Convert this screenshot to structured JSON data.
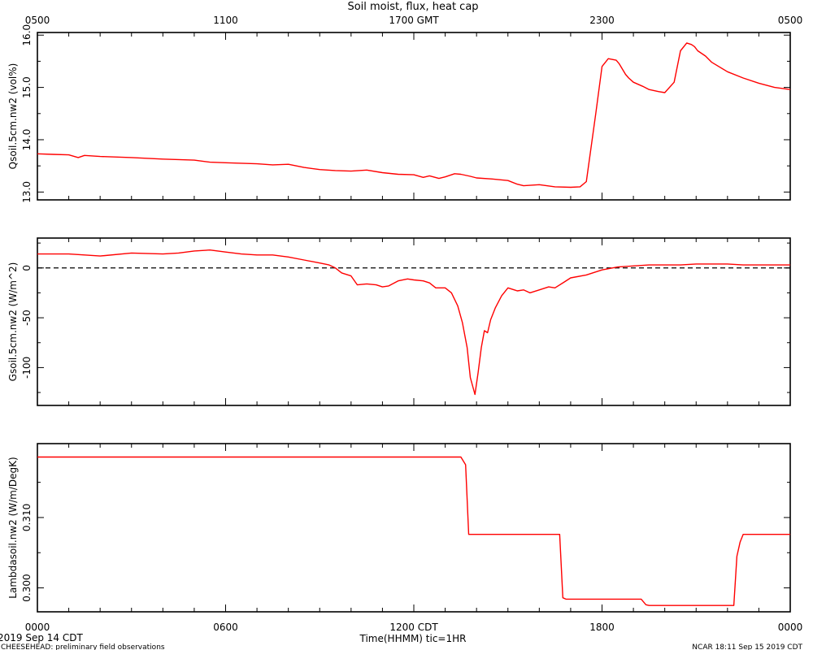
{
  "chart_data": [
    {
      "type": "line",
      "title": "Soil moist, flux, heat cap",
      "top_axis_ticks": [
        "0500",
        "1100",
        "1700 GMT",
        "2300",
        "0500"
      ],
      "ylabel": "Qsoil.5cm.nw2 (vol%)",
      "ylim": [
        12.85,
        16.05
      ],
      "yticks": [
        13.0,
        14.0,
        15.0,
        16.0
      ],
      "ytick_labels": [
        "13.0",
        "14.0",
        "15.0",
        "16.0"
      ],
      "series_color": "#ff0000",
      "x": [
        0,
        0.5,
        1.0,
        1.3,
        1.5,
        2,
        3,
        4,
        4.5,
        5,
        5.5,
        6,
        6.5,
        7,
        7.5,
        8,
        8.5,
        9,
        9.5,
        10,
        10.5,
        11,
        11.5,
        12,
        12.3,
        12.5,
        12.8,
        13,
        13.3,
        13.5,
        13.8,
        14,
        14.5,
        15,
        15.3,
        15.5,
        16,
        16.5,
        17,
        17,
        17.3,
        17.5,
        17.8,
        18,
        18.2,
        18.45,
        18.55,
        18.65,
        18.75,
        18.85,
        19,
        19.3,
        19.5,
        19.8,
        20,
        20.3,
        20.5,
        20.7,
        20.85,
        20.95,
        21.05,
        21.3,
        21.5,
        22,
        22.5,
        23,
        23.5,
        24
      ],
      "y": [
        13.73,
        13.72,
        13.71,
        13.66,
        13.7,
        13.68,
        13.66,
        13.63,
        13.62,
        13.61,
        13.57,
        13.56,
        13.55,
        13.54,
        13.52,
        13.53,
        13.47,
        13.43,
        13.41,
        13.4,
        13.42,
        13.37,
        13.34,
        13.33,
        13.28,
        13.31,
        13.26,
        13.29,
        13.35,
        13.34,
        13.3,
        13.27,
        13.25,
        13.22,
        13.15,
        13.12,
        13.14,
        13.1,
        13.09,
        13.09,
        13.1,
        13.2,
        14.5,
        15.4,
        15.55,
        15.52,
        15.45,
        15.35,
        15.25,
        15.18,
        15.1,
        15.02,
        14.96,
        14.92,
        14.9,
        15.1,
        15.7,
        15.85,
        15.82,
        15.78,
        15.7,
        15.6,
        15.48,
        15.3,
        15.18,
        15.08,
        15.0,
        14.96
      ]
    },
    {
      "type": "line",
      "ylabel": "Gsoil.5cm.nw2 (W/m^2)",
      "ylim": [
        -138,
        30
      ],
      "yticks": [
        -100,
        -50,
        0
      ],
      "ytick_labels": [
        "-100",
        "-50",
        "0"
      ],
      "zero_line": 0,
      "series_color": "#ff0000",
      "x": [
        0,
        1,
        2,
        3,
        4,
        4.5,
        5,
        5.5,
        6,
        6.5,
        7,
        7.5,
        8,
        8.5,
        9,
        9.3,
        9.5,
        9.7,
        10,
        10.2,
        10.5,
        10.8,
        11,
        11.2,
        11.5,
        11.8,
        12,
        12.3,
        12.5,
        12.7,
        13,
        13.2,
        13.4,
        13.55,
        13.7,
        13.8,
        13.95,
        14.05,
        14.15,
        14.25,
        14.35,
        14.45,
        14.6,
        14.8,
        15,
        15.3,
        15.5,
        15.7,
        16,
        16.3,
        16.5,
        16.8,
        17,
        17.5,
        18,
        18.5,
        19,
        19.5,
        20,
        20.5,
        21,
        21.5,
        22,
        22.5,
        23,
        23.5,
        24
      ],
      "y": [
        14,
        14,
        12,
        15,
        14,
        15,
        17,
        18,
        16,
        14,
        13,
        13,
        11,
        8,
        5,
        3,
        0,
        -5,
        -8,
        -17,
        -16,
        -17,
        -19,
        -18,
        -13,
        -11,
        -12,
        -13,
        -15,
        -20,
        -20,
        -25,
        -38,
        -55,
        -80,
        -110,
        -127,
        -105,
        -80,
        -63,
        -65,
        -52,
        -40,
        -28,
        -20,
        -23,
        -22,
        -25,
        -22,
        -19,
        -20,
        -14,
        -10,
        -7,
        -2,
        1,
        2,
        3,
        3,
        3,
        4,
        4,
        4,
        3,
        3,
        3,
        3
      ]
    },
    {
      "type": "line",
      "ylabel": "Lambdasoil.nw2 (W/m/DegK)",
      "ylim": [
        0.2966,
        0.3205
      ],
      "yticks": [
        0.3,
        0.31
      ],
      "ytick_labels": [
        "0.300",
        "0.310"
      ],
      "x_ticks": [
        "0000",
        "0600",
        "1200 CDT",
        "1800",
        "0000"
      ],
      "xlabel": "Time(HHMM)  tic=1HR",
      "series_color": "#ff0000",
      "x": [
        0,
        13.5,
        13.65,
        13.75,
        16.65,
        16.75,
        16.85,
        19.25,
        19.4,
        19.5,
        22.2,
        22.3,
        22.4,
        22.5,
        24
      ],
      "y": [
        0.3186,
        0.3186,
        0.3175,
        0.3076,
        0.3076,
        0.2986,
        0.2984,
        0.2984,
        0.2976,
        0.2975,
        0.2975,
        0.3045,
        0.3065,
        0.3076,
        0.3076
      ]
    }
  ],
  "footer": {
    "date": "2019 Sep 14 CDT",
    "project": "CHEESEHEAD: preliminary field observations",
    "stamp": "NCAR 18:11 Sep 15 2019 CDT"
  }
}
